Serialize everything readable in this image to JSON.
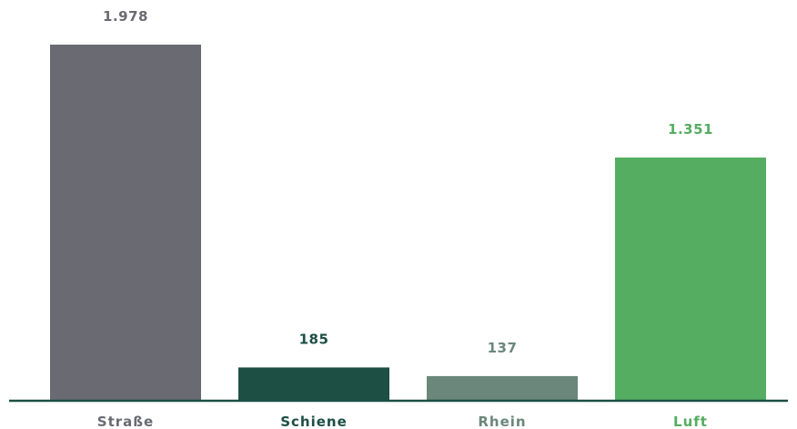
{
  "chart_data": {
    "type": "bar",
    "title": "",
    "xlabel": "",
    "ylabel": "",
    "ylim": [
      0,
      2000
    ],
    "grid": false,
    "legend": "none",
    "categories": [
      "Straße",
      "Schiene",
      "Rhein",
      "Luft"
    ],
    "values": [
      1978,
      185,
      137,
      1351
    ],
    "value_labels": [
      "1.978",
      "185",
      "137",
      "1.351"
    ],
    "colors": [
      "#6a6b72",
      "#1d4f45",
      "#6b877c",
      "#55ad61"
    ],
    "label_colors": [
      "#6a6b72",
      "#1d4f45",
      "#6b877c",
      "#55ad61"
    ],
    "axis_color": "#1d4f45"
  }
}
